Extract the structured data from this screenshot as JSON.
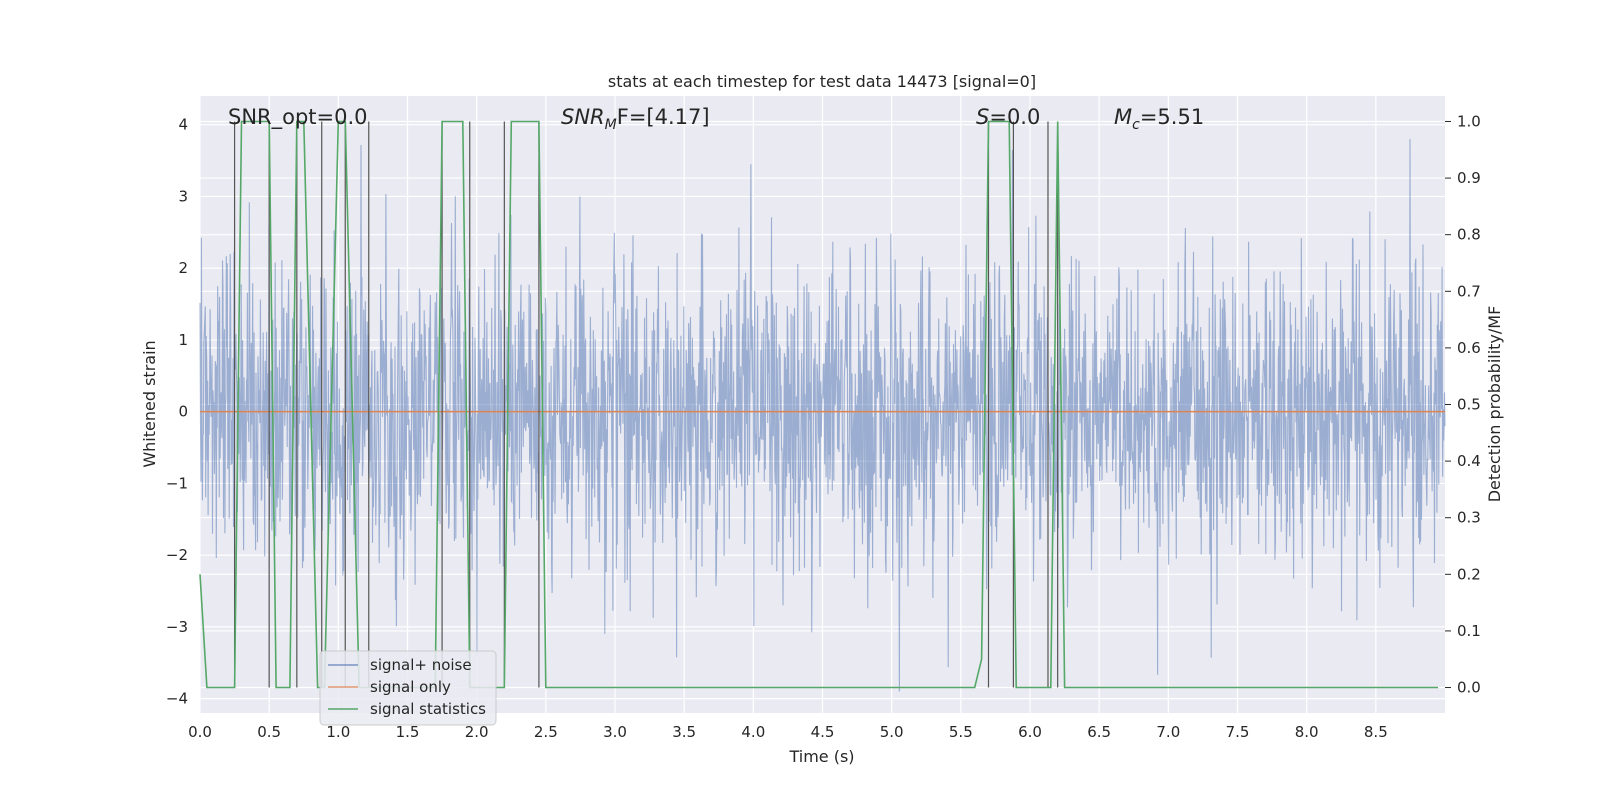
{
  "chart_data": {
    "type": "line",
    "title": "stats at each timestep for test data 14473 [signal=0]",
    "xlabel": "Time (s)",
    "ylabel": "Whitened strain",
    "y2label": "Detection probability/MF",
    "xlim": [
      0.0,
      9.0
    ],
    "ylim": [
      -4.2,
      4.4
    ],
    "y2lim": [
      -0.045,
      1.045
    ],
    "xticks": [
      "0.0",
      "0.5",
      "1.0",
      "1.5",
      "2.0",
      "2.5",
      "3.0",
      "3.5",
      "4.0",
      "4.5",
      "5.0",
      "5.5",
      "6.0",
      "6.5",
      "7.0",
      "7.5",
      "8.0",
      "8.5"
    ],
    "yticks": [
      "4",
      "3",
      "2",
      "1",
      "0",
      "−1",
      "−2",
      "−3",
      "−4"
    ],
    "y2ticks": [
      "1.0",
      "0.9",
      "0.8",
      "0.7",
      "0.6",
      "0.5",
      "0.4",
      "0.3",
      "0.2",
      "0.1",
      "0.0"
    ],
    "grid": true,
    "legend": {
      "placement": "lower-left",
      "entries": [
        "signal+ noise",
        "signal only",
        "signal statistics"
      ]
    },
    "annotations": {
      "snr_opt": "SNR_opt=0.0",
      "snr_mf_sym": "SNR",
      "snr_mf_sub": "M",
      "snr_mf_rest": "F=[4.17]",
      "s_sym": "S",
      "s_rest": "=0.0",
      "mc_sym": "M",
      "mc_sub": "c",
      "mc_rest": "=5.51"
    },
    "colors": {
      "noise": "#4c72b0",
      "signal": "#dd8452",
      "stats": "#55a868",
      "vlines": "#555555",
      "background": "#eaeaf2",
      "grid": "#ffffff"
    },
    "series": [
      {
        "name": "signal+ noise",
        "description": "whitened noise, roughly Gaussian with sigma ~1, extremes about +3.8 / -3.9",
        "envelope_max": 3.8,
        "envelope_min": -3.9
      },
      {
        "name": "signal only",
        "x": [
          0.0,
          9.0
        ],
        "y": [
          0.0,
          0.0
        ]
      },
      {
        "name": "signal statistics",
        "x": [
          0.0,
          0.05,
          0.25,
          0.3,
          0.5,
          0.55,
          0.65,
          0.7,
          0.75,
          0.85,
          0.9,
          1.0,
          1.05,
          1.15,
          1.2,
          1.25,
          1.7,
          1.75,
          1.8,
          1.9,
          1.95,
          2.0,
          2.2,
          2.25,
          2.45,
          2.5,
          2.55,
          5.6,
          5.65,
          5.7,
          5.85,
          5.9,
          6.0,
          6.05,
          6.15,
          6.2,
          6.25,
          8.95
        ],
        "y": [
          0.2,
          0.0,
          0.0,
          1.0,
          1.0,
          0.0,
          0.0,
          1.0,
          1.0,
          0.0,
          0.0,
          1.0,
          1.0,
          0.0,
          0.0,
          0.0,
          0.0,
          1.0,
          1.0,
          1.0,
          0.0,
          0.0,
          0.0,
          1.0,
          1.0,
          0.0,
          0.0,
          0.0,
          0.05,
          1.0,
          1.0,
          0.0,
          0.0,
          0.0,
          0.0,
          1.0,
          0.0,
          0.0
        ]
      },
      {
        "name": "transition markers",
        "x": [
          0.25,
          0.5,
          0.7,
          0.88,
          1.05,
          1.22,
          1.75,
          1.95,
          2.2,
          2.45,
          5.7,
          5.88,
          6.13,
          6.2
        ]
      }
    ]
  }
}
